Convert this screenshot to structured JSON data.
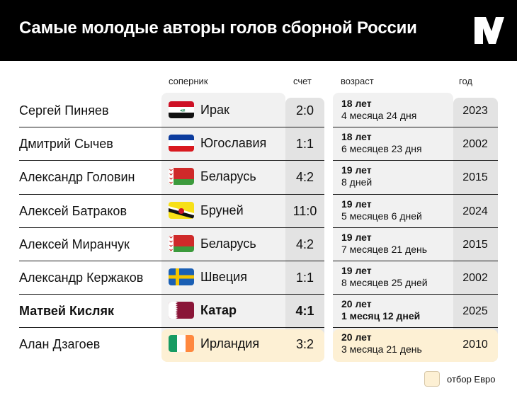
{
  "title": "Самые молодые авторы голов сборной России",
  "logo_icon": "brand-logo-icon",
  "columns": {
    "opponent": "соперник",
    "score": "счет",
    "age": "возраст",
    "year": "год"
  },
  "legend": {
    "label": "отбор Евро",
    "color": "#fdf0d4"
  },
  "chart_data": {
    "type": "table",
    "title": "Самые молодые авторы голов сборной России",
    "columns": [
      "соперник",
      "счет",
      "возраст",
      "год"
    ],
    "rows": [
      {
        "player": "Сергей Пиняев",
        "opponent": "Ирак",
        "flag": "iraq-flag-icon",
        "score": "2:0",
        "age_years": "18 лет",
        "age_rest": "4 месяца 24 дня",
        "year": "2023",
        "euro_qualifier": false,
        "highlight": false
      },
      {
        "player": "Дмитрий Сычев",
        "opponent": "Югославия",
        "flag": "yugoslavia-flag-icon",
        "score": "1:1",
        "age_years": "18 лет",
        "age_rest": "6 месяцев 23 дня",
        "year": "2002",
        "euro_qualifier": false,
        "highlight": false
      },
      {
        "player": "Александр Головин",
        "opponent": "Беларусь",
        "flag": "belarus-flag-icon",
        "score": "4:2",
        "age_years": "19 лет",
        "age_rest": "8 дней",
        "year": "2015",
        "euro_qualifier": false,
        "highlight": false
      },
      {
        "player": "Алексей Батраков",
        "opponent": "Бруней",
        "flag": "brunei-flag-icon",
        "score": "11:0",
        "age_years": "19 лет",
        "age_rest": "5 месяцев 6 дней",
        "year": "2024",
        "euro_qualifier": false,
        "highlight": false
      },
      {
        "player": "Алексей Миранчук",
        "opponent": "Беларусь",
        "flag": "belarus-flag-icon",
        "score": "4:2",
        "age_years": "19 лет",
        "age_rest": "7 месяцев 21 день",
        "year": "2015",
        "euro_qualifier": false,
        "highlight": false
      },
      {
        "player": "Александр Кержаков",
        "opponent": "Швеция",
        "flag": "sweden-flag-icon",
        "score": "1:1",
        "age_years": "19 лет",
        "age_rest": "8 месяцев 25 дней",
        "year": "2002",
        "euro_qualifier": false,
        "highlight": false
      },
      {
        "player": "Матвей Кисляк",
        "opponent": "Катар",
        "flag": "qatar-flag-icon",
        "score": "4:1",
        "age_years": "20 лет",
        "age_rest": "1 месяц 12 дней",
        "year": "2025",
        "euro_qualifier": false,
        "highlight": true
      },
      {
        "player": "Алан Дзагоев",
        "opponent": "Ирландия",
        "flag": "ireland-flag-icon",
        "score": "3:2",
        "age_years": "20 лет",
        "age_rest": "3 месяца 21 день",
        "year": "2010",
        "euro_qualifier": true,
        "highlight": false
      }
    ]
  }
}
